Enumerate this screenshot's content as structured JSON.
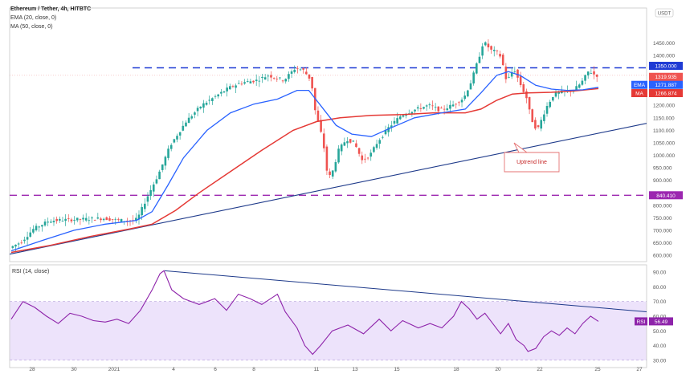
{
  "header": {
    "title": "Ethereum / Tether, 4h, HITBTC",
    "indicator_ema": "EMA (20, close, 0)",
    "indicator_ma": "MA (50, close, 0)",
    "rsi_label": "RSI (14, close)",
    "currency_badge": "USDT"
  },
  "badges": {
    "resistance": "1350.000",
    "last_price": "1319.935",
    "countdown": "03:33:30",
    "ema_tag": "EMA",
    "ema_value": "1271.887",
    "ma_tag": "MA",
    "ma_value": "1266.874",
    "support": "840.410",
    "rsi_tag": "RSI",
    "rsi_value": "56.49"
  },
  "annotation": {
    "uptrend_label": "Uptrend line"
  },
  "colors": {
    "up_candle": "#26a69a",
    "down_candle": "#ef5350",
    "ema": "#2962ff",
    "ma": "#e53935",
    "dashed_level": "#1f3bd4",
    "support_level": "#9c27b0",
    "trendline": "#1e3a8a",
    "rsi_line": "#8e24aa",
    "rsi_band": "#ede3fb"
  },
  "chart_data": [
    {
      "type": "candlestick",
      "title": "Ethereum / Tether, 4h, HITBTC",
      "y_ticks": [
        600,
        650,
        700,
        750,
        800,
        850,
        900,
        950,
        1000,
        1050,
        1100,
        1150,
        1200,
        1250,
        1300,
        1350,
        1400,
        1450
      ],
      "y_tick_labels": [
        "600.000",
        "650.000",
        "700.000",
        "750.000",
        "800.000",
        "850.000",
        "900.000",
        "950.000",
        "1000.000",
        "1050.000",
        "1100.000",
        "1150.000",
        "1200.000",
        "1250.000",
        "1300.000",
        "1350.000",
        "1400.000",
        "1450.000"
      ],
      "x_tick_labels": [
        "28",
        "30",
        "2021",
        "4",
        "6",
        "8",
        "11",
        "13",
        "15",
        "18",
        "20",
        "22",
        "25",
        "27"
      ],
      "ylim": [
        575,
        1480
      ],
      "ema_last": 1271.887,
      "ma_last": 1266.874,
      "last_close": 1319.935,
      "horizontal_levels": [
        {
          "value": 1350,
          "label": "1350.000"
        },
        {
          "value": 840.41,
          "label": "840.410"
        }
      ],
      "uptrend_line": {
        "from": {
          "x": 0,
          "y": 605
        },
        "to": {
          "x": 160,
          "y": 1128
        }
      },
      "closes_path": [
        [
          0,
          630
        ],
        [
          3,
          655
        ],
        [
          6,
          705
        ],
        [
          10,
          738
        ],
        [
          14,
          742
        ],
        [
          19,
          745
        ],
        [
          24,
          748
        ],
        [
          28,
          740
        ],
        [
          32,
          738
        ],
        [
          33,
          760
        ],
        [
          35,
          830
        ],
        [
          38,
          925
        ],
        [
          41,
          1040
        ],
        [
          45,
          1135
        ],
        [
          49,
          1200
        ],
        [
          53,
          1240
        ],
        [
          56,
          1270
        ],
        [
          59,
          1290
        ],
        [
          63,
          1300
        ],
        [
          66,
          1320
        ],
        [
          70,
          1300
        ],
        [
          73,
          1350
        ],
        [
          75,
          1340
        ],
        [
          77,
          1300
        ],
        [
          78,
          1180
        ],
        [
          80,
          1060
        ],
        [
          81,
          940
        ],
        [
          82,
          910
        ],
        [
          84,
          1020
        ],
        [
          86,
          1065
        ],
        [
          88,
          1050
        ],
        [
          90,
          980
        ],
        [
          92,
          1000
        ],
        [
          94,
          1055
        ],
        [
          97,
          1115
        ],
        [
          100,
          1160
        ],
        [
          103,
          1180
        ],
        [
          107,
          1200
        ],
        [
          110,
          1180
        ],
        [
          113,
          1200
        ],
        [
          116,
          1230
        ],
        [
          118,
          1300
        ],
        [
          120,
          1400
        ],
        [
          121,
          1455
        ],
        [
          123,
          1420
        ],
        [
          125,
          1410
        ],
        [
          126,
          1360
        ],
        [
          127,
          1290
        ],
        [
          128,
          1330
        ],
        [
          129,
          1340
        ],
        [
          130,
          1300
        ],
        [
          132,
          1230
        ],
        [
          133,
          1160
        ],
        [
          134,
          1115
        ],
        [
          135,
          1110
        ],
        [
          137,
          1190
        ],
        [
          139,
          1245
        ],
        [
          142,
          1255
        ],
        [
          144,
          1260
        ],
        [
          146,
          1290
        ],
        [
          148,
          1340
        ],
        [
          149,
          1325
        ],
        [
          150,
          1320
        ]
      ],
      "ema_path": [
        [
          0,
          618
        ],
        [
          8,
          660
        ],
        [
          16,
          700
        ],
        [
          24,
          725
        ],
        [
          32,
          740
        ],
        [
          36,
          775
        ],
        [
          40,
          880
        ],
        [
          44,
          990
        ],
        [
          50,
          1100
        ],
        [
          56,
          1170
        ],
        [
          62,
          1205
        ],
        [
          68,
          1225
        ],
        [
          73,
          1260
        ],
        [
          76,
          1260
        ],
        [
          79,
          1200
        ],
        [
          83,
          1120
        ],
        [
          87,
          1085
        ],
        [
          92,
          1075
        ],
        [
          97,
          1110
        ],
        [
          103,
          1150
        ],
        [
          110,
          1170
        ],
        [
          116,
          1185
        ],
        [
          120,
          1250
        ],
        [
          124,
          1320
        ],
        [
          127,
          1335
        ],
        [
          130,
          1320
        ],
        [
          134,
          1280
        ],
        [
          138,
          1265
        ],
        [
          142,
          1260
        ],
        [
          146,
          1262
        ],
        [
          150,
          1272
        ]
      ],
      "ma_path": [
        [
          0,
          612
        ],
        [
          10,
          640
        ],
        [
          20,
          675
        ],
        [
          30,
          705
        ],
        [
          36,
          725
        ],
        [
          42,
          780
        ],
        [
          48,
          850
        ],
        [
          56,
          935
        ],
        [
          64,
          1020
        ],
        [
          72,
          1100
        ],
        [
          78,
          1135
        ],
        [
          84,
          1150
        ],
        [
          92,
          1160
        ],
        [
          100,
          1163
        ],
        [
          108,
          1170
        ],
        [
          116,
          1170
        ],
        [
          120,
          1185
        ],
        [
          124,
          1220
        ],
        [
          128,
          1245
        ],
        [
          132,
          1250
        ],
        [
          138,
          1252
        ],
        [
          144,
          1258
        ],
        [
          150,
          1267
        ]
      ]
    },
    {
      "type": "line",
      "title": "RSI (14, close)",
      "y_ticks": [
        30,
        40,
        50,
        60,
        70,
        80,
        90
      ],
      "y_tick_labels": [
        "30.00",
        "40.00",
        "50.00",
        "60.00",
        "70.00",
        "80.00",
        "90.00"
      ],
      "ylim": [
        25,
        95
      ],
      "band": [
        30,
        70
      ],
      "last_value": 56.49,
      "trendline": {
        "from": {
          "x": 37,
          "y": 91
        },
        "to": {
          "x": 150,
          "y": 63
        }
      },
      "values_path": [
        [
          0,
          58
        ],
        [
          3,
          70
        ],
        [
          6,
          66
        ],
        [
          9,
          60
        ],
        [
          12,
          55
        ],
        [
          15,
          62
        ],
        [
          18,
          60
        ],
        [
          21,
          57
        ],
        [
          24,
          56
        ],
        [
          27,
          58
        ],
        [
          30,
          55
        ],
        [
          33,
          64
        ],
        [
          36,
          78
        ],
        [
          38,
          89
        ],
        [
          39,
          91
        ],
        [
          41,
          78
        ],
        [
          44,
          72
        ],
        [
          48,
          68
        ],
        [
          52,
          72
        ],
        [
          55,
          64
        ],
        [
          58,
          75
        ],
        [
          61,
          72
        ],
        [
          64,
          68
        ],
        [
          68,
          75
        ],
        [
          70,
          63
        ],
        [
          73,
          52
        ],
        [
          75,
          40
        ],
        [
          77,
          34
        ],
        [
          79,
          40
        ],
        [
          82,
          50
        ],
        [
          86,
          54
        ],
        [
          90,
          48
        ],
        [
          94,
          58
        ],
        [
          97,
          50
        ],
        [
          100,
          57
        ],
        [
          104,
          52
        ],
        [
          107,
          55
        ],
        [
          110,
          52
        ],
        [
          113,
          60
        ],
        [
          115,
          70
        ],
        [
          117,
          65
        ],
        [
          119,
          58
        ],
        [
          121,
          62
        ],
        [
          123,
          55
        ],
        [
          125,
          48
        ],
        [
          127,
          55
        ],
        [
          129,
          44
        ],
        [
          131,
          40
        ],
        [
          132,
          36
        ],
        [
          134,
          38
        ],
        [
          136,
          46
        ],
        [
          138,
          50
        ],
        [
          140,
          47
        ],
        [
          142,
          52
        ],
        [
          144,
          48
        ],
        [
          146,
          55
        ],
        [
          148,
          60
        ],
        [
          150,
          56.49
        ]
      ]
    }
  ]
}
